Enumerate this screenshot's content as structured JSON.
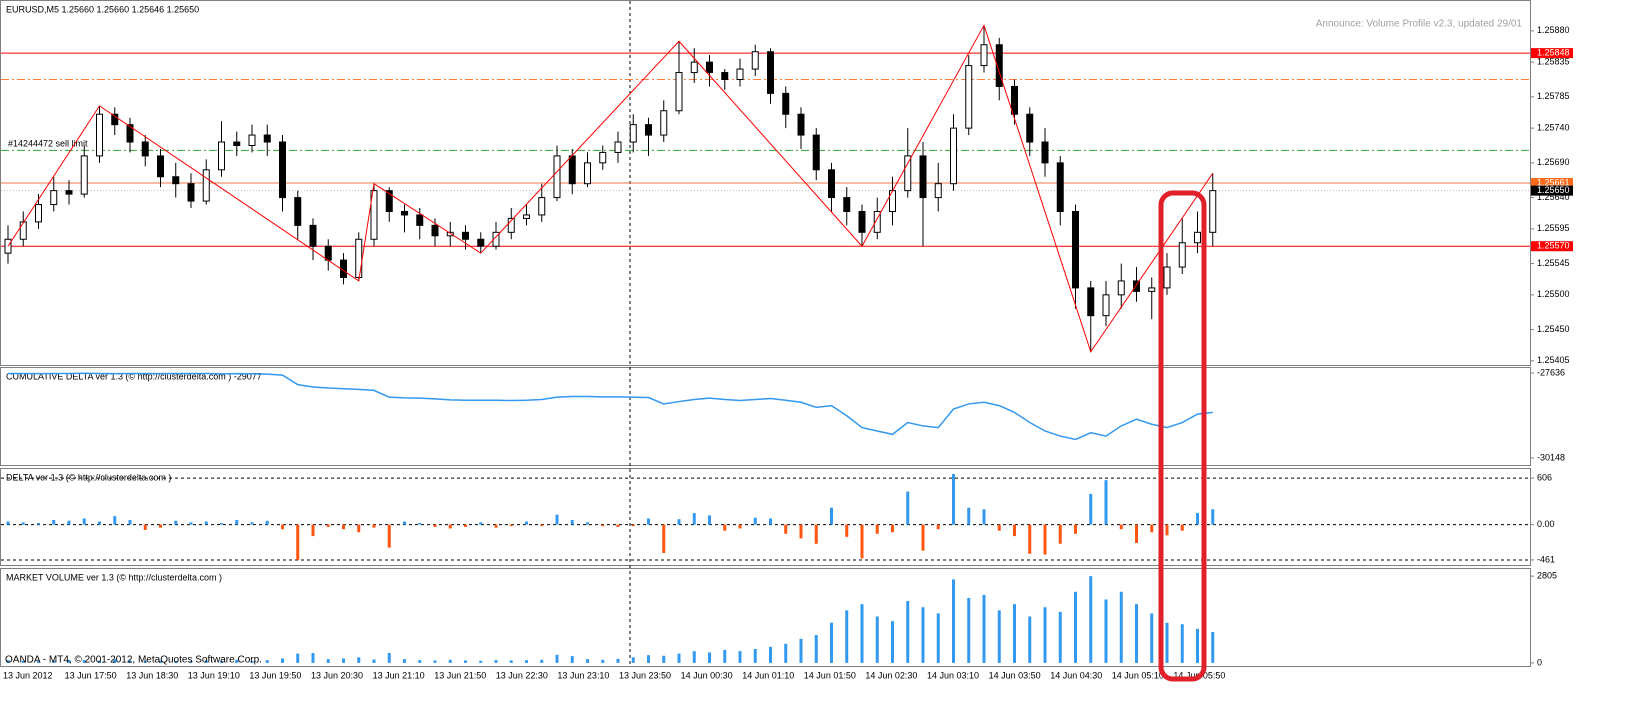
{
  "chart_data": [
    {
      "type": "candlestick",
      "title": "EURUSD,M5  1.25660 1.25660 1.25646 1.25650",
      "annotation": "Announce: Volume Profile v2.3, updated 29/01",
      "order_label": "#14244472 sell limit",
      "ylim": [
        1.25399,
        1.25923
      ],
      "yticks": [
        {
          "value": 1.2588,
          "label": "1.25880"
        },
        1.25835,
        1.25785,
        {
          "value": 1.2574,
          "label": "1.25740"
        },
        {
          "value": 1.2569,
          "label": "1.25690"
        },
        {
          "value": 1.2564,
          "label": "1.25640"
        },
        1.25595,
        1.25545,
        {
          "value": 1.255,
          "label": "1.25500"
        },
        {
          "value": 1.2545,
          "label": "1.25450"
        },
        1.25405
      ],
      "up_color": "#ffffff",
      "down_color": "#000000",
      "ohlc": [
        [
          1.2556,
          1.256,
          1.25545,
          1.2558
        ],
        [
          1.2558,
          1.2562,
          1.2557,
          1.25605
        ],
        [
          1.25605,
          1.25645,
          1.25595,
          1.2563
        ],
        [
          1.2563,
          1.2567,
          1.2562,
          1.2565
        ],
        [
          1.2565,
          1.25665,
          1.2563,
          1.25645
        ],
        [
          1.25645,
          1.25715,
          1.2564,
          1.257
        ],
        [
          1.257,
          1.25772,
          1.2569,
          1.2576
        ],
        [
          1.2576,
          1.2577,
          1.2573,
          1.25745
        ],
        [
          1.25745,
          1.25755,
          1.25705,
          1.2572
        ],
        [
          1.2572,
          1.2573,
          1.25685,
          1.257
        ],
        [
          1.257,
          1.2571,
          1.25655,
          1.2567
        ],
        [
          1.2567,
          1.2569,
          1.2564,
          1.2566
        ],
        [
          1.2566,
          1.25675,
          1.25625,
          1.25635
        ],
        [
          1.25635,
          1.25695,
          1.2563,
          1.2568
        ],
        [
          1.2568,
          1.2575,
          1.2567,
          1.2572
        ],
        [
          1.2572,
          1.25735,
          1.257,
          1.25715
        ],
        [
          1.25715,
          1.25745,
          1.25705,
          1.2573
        ],
        [
          1.2573,
          1.25745,
          1.257,
          1.2572
        ],
        [
          1.2572,
          1.2573,
          1.2562,
          1.2564
        ],
        [
          1.2564,
          1.2565,
          1.2558,
          1.256
        ],
        [
          1.256,
          1.2561,
          1.2555,
          1.2557
        ],
        [
          1.2557,
          1.2558,
          1.25535,
          1.2555
        ],
        [
          1.2555,
          1.2556,
          1.25515,
          1.25525
        ],
        [
          1.25525,
          1.2559,
          1.2552,
          1.2558
        ],
        [
          1.2558,
          1.2566,
          1.2557,
          1.2565
        ],
        [
          1.2565,
          1.25655,
          1.25605,
          1.2562
        ],
        [
          1.2562,
          1.2563,
          1.2559,
          1.25615
        ],
        [
          1.25615,
          1.25625,
          1.2558,
          1.256
        ],
        [
          1.256,
          1.2561,
          1.2557,
          1.25585
        ],
        [
          1.25585,
          1.25605,
          1.2557,
          1.2559
        ],
        [
          1.2559,
          1.256,
          1.25565,
          1.2558
        ],
        [
          1.2558,
          1.2559,
          1.2556,
          1.2557
        ],
        [
          1.2557,
          1.25605,
          1.25565,
          1.2559
        ],
        [
          1.2559,
          1.25625,
          1.2558,
          1.2561
        ],
        [
          1.2561,
          1.2563,
          1.256,
          1.25615
        ],
        [
          1.25615,
          1.2566,
          1.25605,
          1.2564
        ],
        [
          1.2564,
          1.25715,
          1.25635,
          1.257
        ],
        [
          1.257,
          1.2571,
          1.25645,
          1.2566
        ],
        [
          1.2566,
          1.25705,
          1.25655,
          1.2569
        ],
        [
          1.2569,
          1.25715,
          1.2568,
          1.25705
        ],
        [
          1.25705,
          1.25735,
          1.2569,
          1.2572
        ],
        [
          1.2572,
          1.2576,
          1.25705,
          1.25745
        ],
        [
          1.25745,
          1.25755,
          1.257,
          1.2573
        ],
        [
          1.2573,
          1.2578,
          1.2572,
          1.25765
        ],
        [
          1.25765,
          1.25865,
          1.2576,
          1.2582
        ],
        [
          1.2582,
          1.25855,
          1.25805,
          1.25835
        ],
        [
          1.25835,
          1.25845,
          1.258,
          1.2582
        ],
        [
          1.2582,
          1.25825,
          1.25795,
          1.2581
        ],
        [
          1.2581,
          1.2584,
          1.258,
          1.25825
        ],
        [
          1.25825,
          1.2586,
          1.25815,
          1.2585
        ],
        [
          1.2585,
          1.25855,
          1.25775,
          1.2579
        ],
        [
          1.2579,
          1.258,
          1.2574,
          1.2576
        ],
        [
          1.2576,
          1.2577,
          1.2571,
          1.2573
        ],
        [
          1.2573,
          1.2574,
          1.25665,
          1.2568
        ],
        [
          1.2568,
          1.2569,
          1.2562,
          1.2564
        ],
        [
          1.2564,
          1.25655,
          1.256,
          1.2562
        ],
        [
          1.2562,
          1.2563,
          1.2557,
          1.2559
        ],
        [
          1.2559,
          1.2564,
          1.2558,
          1.2562
        ],
        [
          1.2562,
          1.2567,
          1.256,
          1.2565
        ],
        [
          1.2565,
          1.2574,
          1.2564,
          1.257
        ],
        [
          1.257,
          1.2572,
          1.2557,
          1.2564
        ],
        [
          1.2564,
          1.2569,
          1.2562,
          1.2566
        ],
        [
          1.2566,
          1.2576,
          1.2565,
          1.2574
        ],
        [
          1.2574,
          1.25845,
          1.2573,
          1.2583
        ],
        [
          1.2583,
          1.25888,
          1.2582,
          1.2586
        ],
        [
          1.2586,
          1.2587,
          1.2578,
          1.258
        ],
        [
          1.258,
          1.2581,
          1.25745,
          1.2576
        ],
        [
          1.2576,
          1.2577,
          1.257,
          1.2572
        ],
        [
          1.2572,
          1.2574,
          1.2567,
          1.2569
        ],
        [
          1.2569,
          1.257,
          1.256,
          1.2562
        ],
        [
          1.2562,
          1.2563,
          1.2548,
          1.2551
        ],
        [
          1.2551,
          1.2552,
          1.25418,
          1.2547
        ],
        [
          1.2547,
          1.2552,
          1.25455,
          1.255
        ],
        [
          1.255,
          1.25545,
          1.2548,
          1.2552
        ],
        [
          1.2552,
          1.2554,
          1.2549,
          1.25505
        ],
        [
          1.25505,
          1.25525,
          1.25465,
          1.2551
        ],
        [
          1.2551,
          1.2556,
          1.255,
          1.2554
        ],
        [
          1.2554,
          1.2561,
          1.2553,
          1.25575
        ],
        [
          1.25575,
          1.2562,
          1.2556,
          1.2559
        ],
        [
          1.2559,
          1.25675,
          1.2557,
          1.2565
        ]
      ],
      "hlines": [
        {
          "value": 1.25848,
          "color": "#ff0000",
          "style": "solid",
          "label_bg": "#ff0000"
        },
        {
          "value": 1.2581,
          "color": "#ff7f3f",
          "style": "dashdot"
        },
        {
          "value": 1.25708,
          "color": "#2fa82f",
          "style": "dashdot"
        },
        {
          "value": 1.25661,
          "color": "#f07a4a",
          "style": "solid",
          "label_bg": "#ff6a1a"
        },
        {
          "value": 1.2565,
          "label": "1.25650",
          "color": "#c0c0c0",
          "style": "dotted",
          "label_bg": "#000000"
        },
        {
          "value": 1.2557,
          "label": "1.25570",
          "color": "#ff0000",
          "style": "solid",
          "label_bg": "#ff0000"
        }
      ],
      "zigzag": {
        "color": "#ff0000",
        "x": [
          0,
          6,
          23,
          24,
          31,
          44,
          56,
          64,
          71,
          79
        ],
        "values": [
          1.2557,
          1.25772,
          1.2552,
          1.2566,
          1.2556,
          1.25865,
          1.2557,
          1.25888,
          1.25418,
          1.25675
        ]
      }
    },
    {
      "type": "line",
      "title": "CUMULATIVE DELTA ver 1.3 (© http://clusterdelta.com ) -29077",
      "color": "#3399ee",
      "ylim": [
        -30355,
        -27488
      ],
      "yticks": [
        -27636,
        -30148
      ],
      "values": [
        -27650,
        -27650,
        -27655,
        -27650,
        -27650,
        -27645,
        -27650,
        -27655,
        -27650,
        -27650,
        -27655,
        -27650,
        -27650,
        -27650,
        -27660,
        -27655,
        -27660,
        -27670,
        -27700,
        -27980,
        -28050,
        -28080,
        -28100,
        -28120,
        -28150,
        -28350,
        -28370,
        -28380,
        -28400,
        -28430,
        -28440,
        -28440,
        -28440,
        -28450,
        -28440,
        -28420,
        -28350,
        -28330,
        -28330,
        -28340,
        -28340,
        -28350,
        -28360,
        -28550,
        -28480,
        -28420,
        -28380,
        -28420,
        -28450,
        -28420,
        -28390,
        -28440,
        -28500,
        -28650,
        -28600,
        -28900,
        -29250,
        -29350,
        -29450,
        -29100,
        -29200,
        -29250,
        -28700,
        -28550,
        -28500,
        -28600,
        -28800,
        -29100,
        -29350,
        -29500,
        -29600,
        -29400,
        -29500,
        -29200,
        -29000,
        -29150,
        -29250,
        -29100,
        -28850,
        -28800
      ]
    },
    {
      "type": "bar",
      "title": "DELTA ver 1.3 (© http://clusterdelta.com )",
      "color": "#3399ee",
      "neg_color": "#ff5511",
      "grid": true,
      "ylim": [
        -527,
        725
      ],
      "yticks": [
        606,
        {
          "value": 0,
          "label": "0.00"
        },
        -461
      ],
      "values": [
        40,
        30,
        20,
        60,
        50,
        80,
        40,
        110,
        60,
        -70,
        -40,
        50,
        30,
        40,
        20,
        60,
        30,
        50,
        -60,
        -460,
        -150,
        -30,
        -60,
        -100,
        -40,
        -300,
        40,
        20,
        -30,
        -50,
        -30,
        30,
        -40,
        -20,
        40,
        -20,
        130,
        60,
        30,
        -20,
        -30,
        -20,
        80,
        -370,
        70,
        150,
        120,
        -80,
        -50,
        90,
        80,
        -120,
        -180,
        -250,
        220,
        -160,
        -440,
        -120,
        -100,
        430,
        -340,
        -60,
        660,
        220,
        200,
        -80,
        -150,
        -380,
        -390,
        -250,
        -120,
        400,
        580,
        -60,
        -240,
        -100,
        -140,
        -80,
        150,
        200
      ]
    },
    {
      "type": "bar",
      "title": "MARKET VOLUME ver 1.3 (© http://clusterdelta.com )",
      "color": "#3399ee",
      "neg_color": "#ff5511",
      "ylim": [
        -100,
        3036
      ],
      "yticks": [
        2805,
        0
      ],
      "values": [
        90,
        70,
        60,
        80,
        100,
        90,
        70,
        120,
        80,
        60,
        70,
        60,
        60,
        80,
        60,
        100,
        60,
        90,
        140,
        300,
        320,
        120,
        140,
        180,
        110,
        320,
        120,
        90,
        80,
        100,
        80,
        70,
        90,
        80,
        90,
        100,
        260,
        220,
        120,
        100,
        130,
        180,
        250,
        230,
        300,
        380,
        340,
        420,
        380,
        450,
        520,
        620,
        780,
        900,
        1300,
        1700,
        1900,
        1500,
        1350,
        2000,
        1800,
        1600,
        2700,
        2100,
        2200,
        1700,
        1900,
        1500,
        1800,
        1650,
        2300,
        2805,
        2050,
        2300,
        1900,
        1600,
        1300,
        1250,
        1100,
        1000
      ]
    }
  ],
  "time_axis": [
    "13 Jun 2012",
    "13 Jun 17:50",
    "13 Jun 18:30",
    "13 Jun 19:10",
    "13 Jun 19:50",
    "13 Jun 20:30",
    "13 Jun 21:10",
    "13 Jun 21:50",
    "13 Jun 22:30",
    "13 Jun 23:10",
    "13 Jun 23:50",
    "14 Jun 00:30",
    "14 Jun 01:10",
    "14 Jun 01:50",
    "14 Jun 02:30",
    "14 Jun 03:10",
    "14 Jun 03:50",
    "14 Jun 04:30",
    "14 Jun 05:10",
    "14 Jun 05:50"
  ],
  "footer": "OANDA - MT4, © 2001-2012, MetaQuotes Software Corp."
}
